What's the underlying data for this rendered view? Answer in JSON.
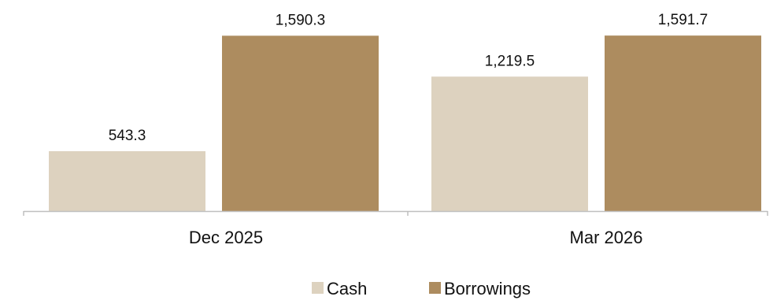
{
  "chart_data": {
    "type": "bar",
    "categories": [
      "Dec 2025",
      "Mar 2026"
    ],
    "series": [
      {
        "name": "Cash",
        "color": "#DDD2BF",
        "values": [
          543.3,
          1219.5
        ],
        "labels": [
          "543.3",
          "1,219.5"
        ]
      },
      {
        "name": "Borrowings",
        "color": "#AD8C5F",
        "values": [
          1590.3,
          1591.7
        ],
        "labels": [
          "1,590.3",
          "1,591.7"
        ]
      }
    ],
    "ylim": [
      0,
      1600
    ],
    "grid": false,
    "legend_position": "bottom-center",
    "axis_color": "#BFBFBF"
  }
}
